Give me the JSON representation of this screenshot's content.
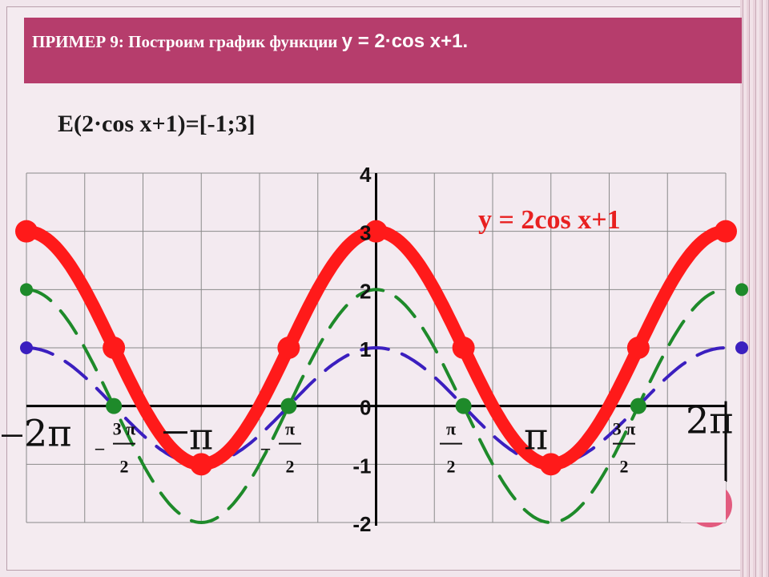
{
  "title": {
    "prefix": "ПРИМЕР 9",
    "text": ": Построим  график  функции ",
    "formula": "у = 2·cos х+1."
  },
  "range_line": "E(2·cos x+1)=[-1;3]",
  "colors": {
    "title_bg": "#b63d6c",
    "main_curve": "#ff1a1a",
    "dashed_green": "#1e8a2a",
    "dashed_blue": "#3b1fbf",
    "grid": "#8a8a8a"
  },
  "chart_data": {
    "type": "line",
    "title": "",
    "xlim": [
      -6.283185,
      6.283185
    ],
    "ylim": [
      -2,
      4
    ],
    "grid": true,
    "y_ticks": [
      "-2",
      "-1",
      "0",
      "1",
      "2",
      "3",
      "4"
    ],
    "x_tick_labels": {
      "neg_two_pi": "2π",
      "neg_three_pi_half": {
        "sign": "_",
        "num": "3 π",
        "den": "2"
      },
      "neg_pi": "π",
      "neg_pi_half": {
        "sign": "_",
        "num": "π",
        "den": "2"
      },
      "pi_half": {
        "num": "π",
        "den": "2"
      },
      "pi": "π",
      "three_pi_half": {
        "num": "3 π",
        "den": "2"
      },
      "two_pi": "2π"
    },
    "annotation": "y = 2cos x+1",
    "series": [
      {
        "name": "y = 2cos x+1",
        "style": "solid",
        "x": [
          -6.283185,
          -4.712389,
          -3.141593,
          -1.570796,
          0,
          1.570796,
          3.141593,
          4.712389,
          6.283185
        ],
        "y": [
          3,
          1,
          -1,
          1,
          3,
          1,
          -1,
          1,
          3
        ]
      },
      {
        "style": "dashed",
        "x": [
          -6.283185,
          -4.712389,
          -3.141593,
          -1.570796,
          0,
          1.570796,
          3.141593,
          4.712389,
          6.283185
        ],
        "y": [
          2,
          0,
          -2,
          0,
          2,
          0,
          -2,
          0,
          2
        ]
      },
      {
        "style": "dashed",
        "x": [
          -6.283185,
          -4.712389,
          -3.141593,
          -1.570796,
          0,
          1.570796,
          3.141593,
          4.712389,
          6.283185
        ],
        "y": [
          1,
          0,
          -1,
          0,
          1,
          0,
          -1,
          0,
          1
        ]
      }
    ]
  }
}
